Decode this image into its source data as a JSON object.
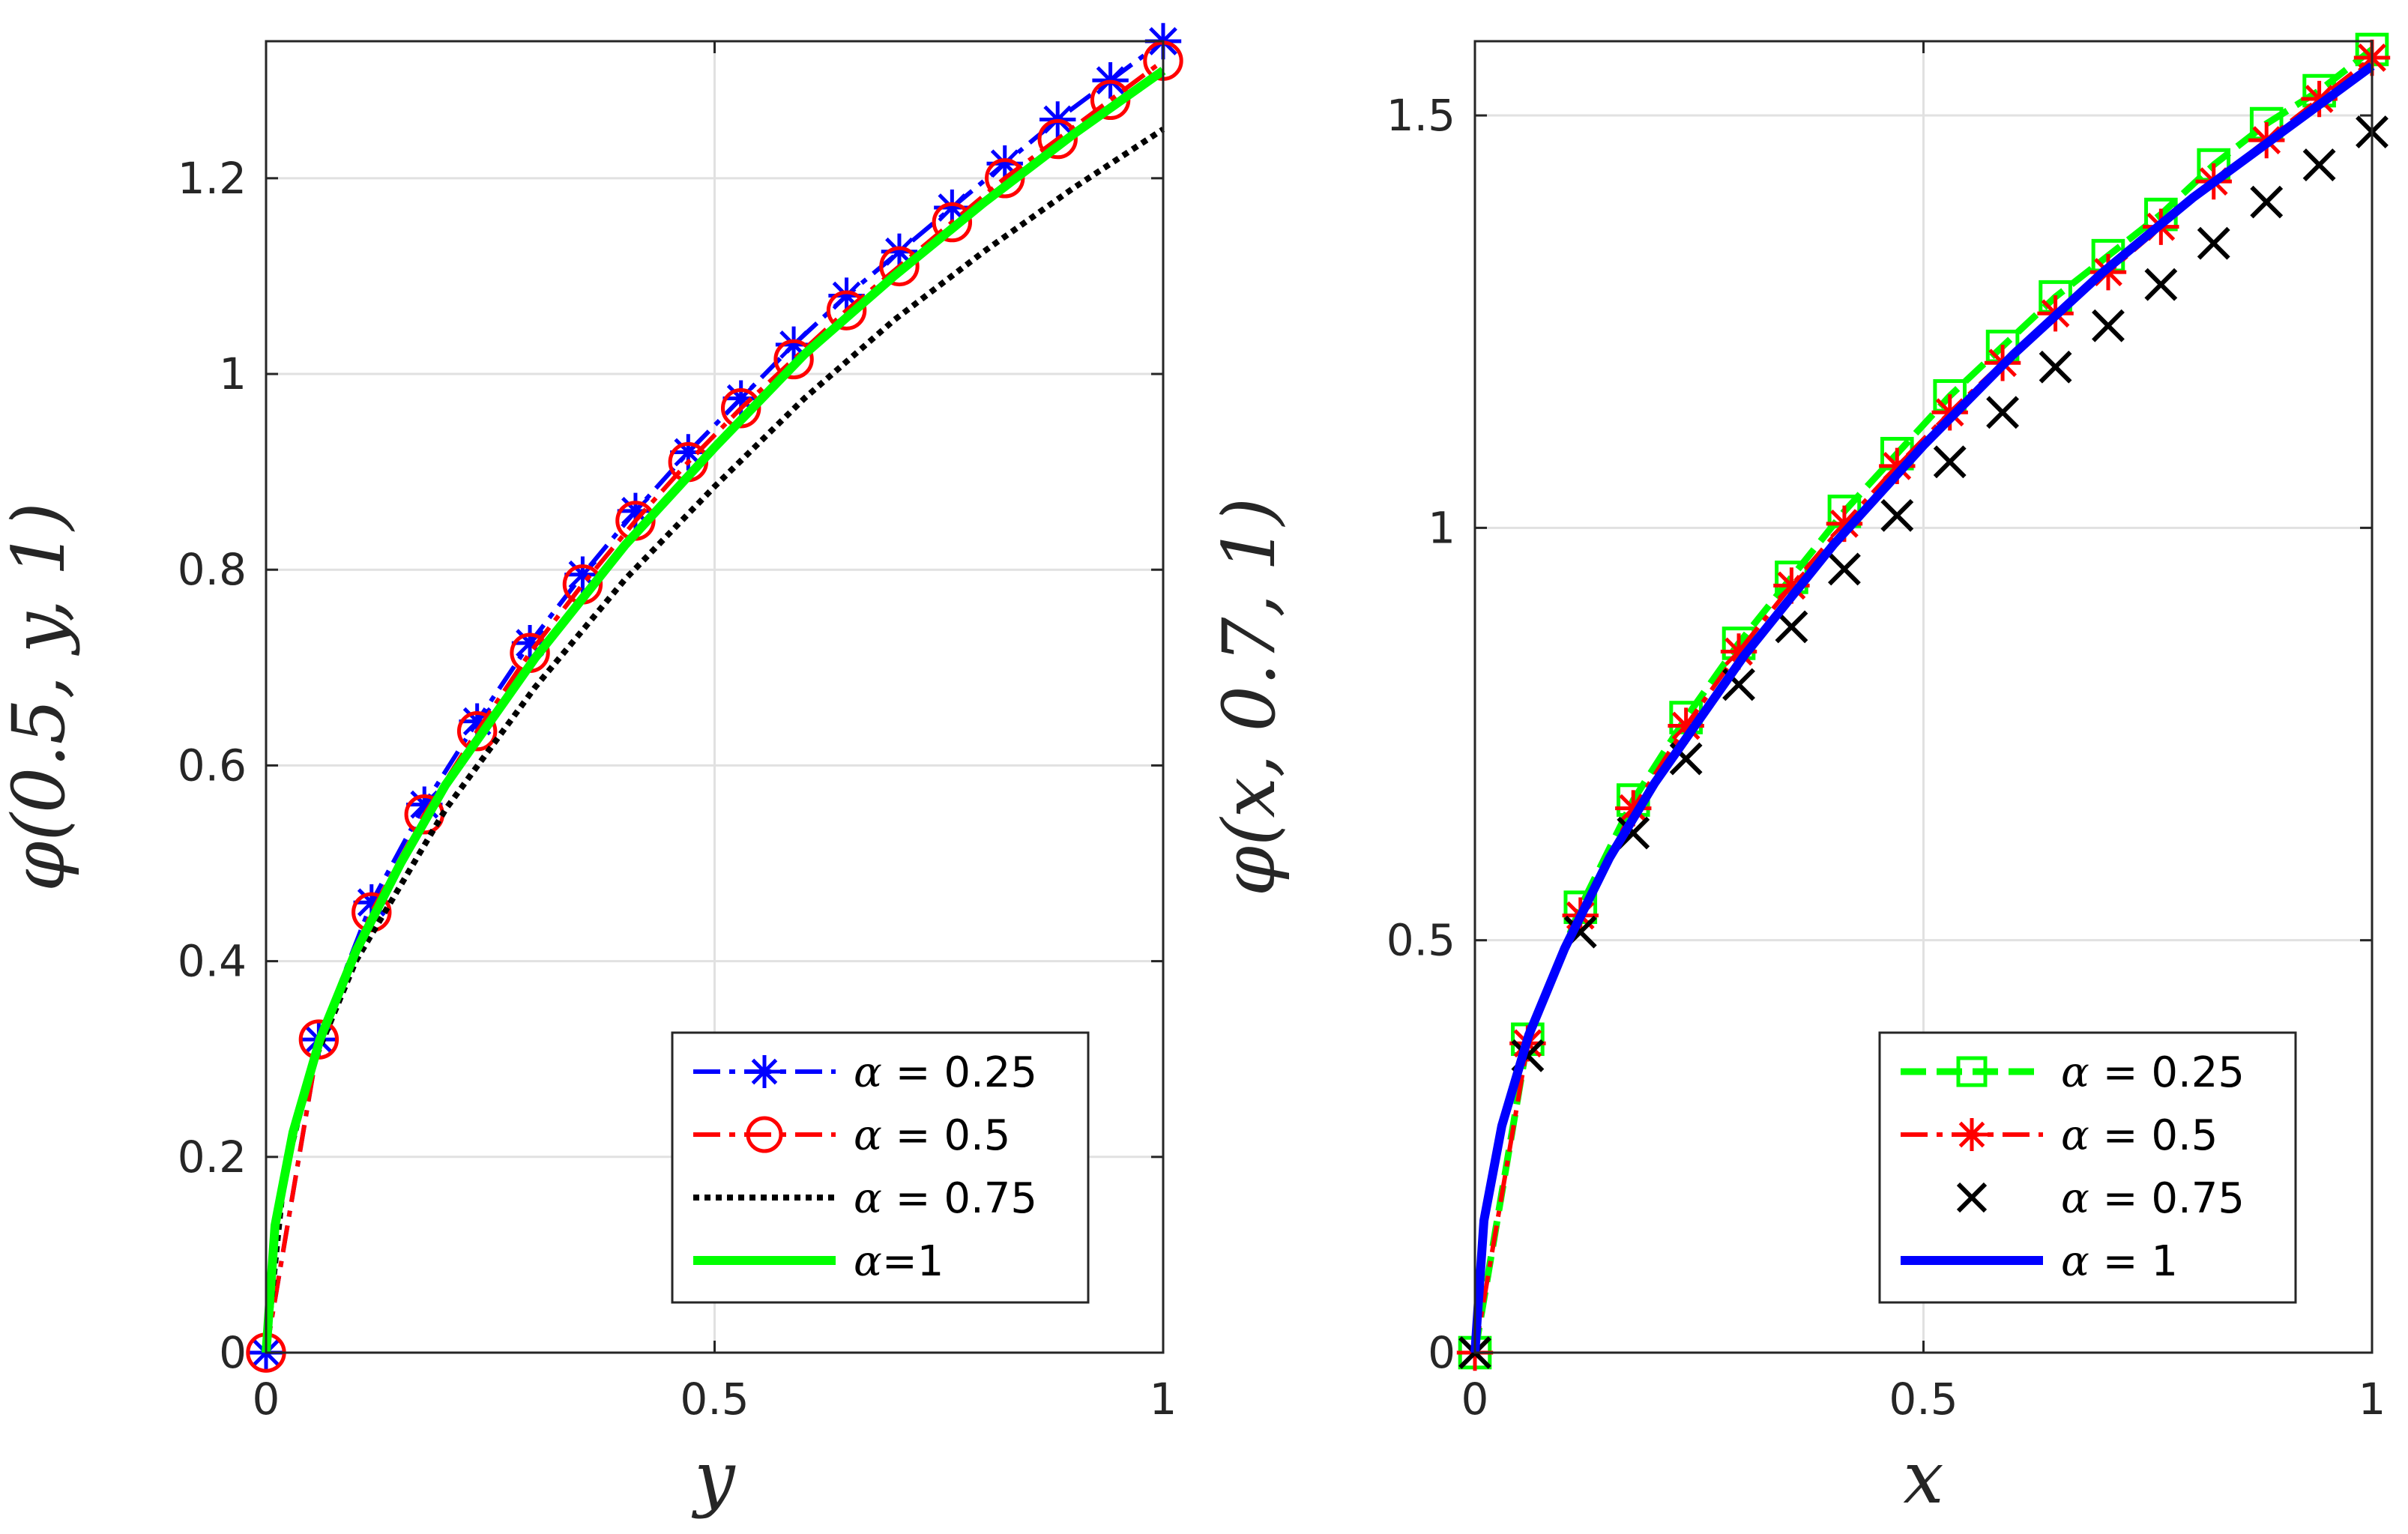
{
  "chart_data": [
    {
      "type": "line",
      "xlabel": "y",
      "ylabel": "φ(0.5, y, 1)",
      "xlim": [
        0,
        1
      ],
      "ylim": [
        0,
        1.34
      ],
      "xticks": [
        0,
        0.5,
        1
      ],
      "xtick_labels": [
        "0",
        "0.5",
        "1"
      ],
      "yticks": [
        0,
        0.2,
        0.4,
        0.6,
        0.8,
        1,
        1.2
      ],
      "ytick_labels": [
        "0",
        "0.2",
        "0.4",
        "0.6",
        "0.8",
        "1",
        "1.2"
      ],
      "grid": true,
      "legend_position": "bottom-right",
      "series": [
        {
          "name": "α = 0.25",
          "legend_symbol": "α",
          "legend_value": " = 0.25",
          "color": "#0000ff",
          "line": "dashdot",
          "marker": "asterisk",
          "x": [
            0,
            0.0588,
            0.1176,
            0.1765,
            0.2353,
            0.2941,
            0.3529,
            0.4118,
            0.4706,
            0.5294,
            0.5882,
            0.6471,
            0.7059,
            0.7647,
            0.8235,
            0.8824,
            0.9412,
            1
          ],
          "y": [
            0,
            0.32,
            0.46,
            0.56,
            0.645,
            0.725,
            0.795,
            0.86,
            0.92,
            0.975,
            1.03,
            1.08,
            1.125,
            1.17,
            1.215,
            1.26,
            1.3,
            1.34
          ]
        },
        {
          "name": "α = 0.5",
          "legend_symbol": "α",
          "legend_value": " = 0.5",
          "color": "#ff0000",
          "line": "dashdot",
          "marker": "circle",
          "x": [
            0,
            0.0588,
            0.1176,
            0.1765,
            0.2353,
            0.2941,
            0.3529,
            0.4118,
            0.4706,
            0.5294,
            0.5882,
            0.6471,
            0.7059,
            0.7647,
            0.8235,
            0.8824,
            0.9412,
            1
          ],
          "y": [
            0,
            0.32,
            0.45,
            0.55,
            0.635,
            0.715,
            0.785,
            0.85,
            0.91,
            0.965,
            1.015,
            1.065,
            1.11,
            1.155,
            1.2,
            1.24,
            1.28,
            1.32
          ]
        },
        {
          "name": "α = 0.75",
          "legend_symbol": "α",
          "legend_value": " = 0.75",
          "color": "#000000",
          "line": "dotted",
          "marker": "none",
          "x": [
            0,
            0.02,
            0.05,
            0.1,
            0.2,
            0.3,
            0.4,
            0.5,
            0.6,
            0.7,
            0.8,
            0.9,
            1
          ],
          "y": [
            0,
            0.18,
            0.29,
            0.4,
            0.555,
            0.68,
            0.79,
            0.885,
            0.975,
            1.055,
            1.125,
            1.19,
            1.25
          ]
        },
        {
          "name": "α=1",
          "legend_symbol": "α",
          "legend_value": "=1",
          "color": "#00ff00",
          "line": "solid",
          "marker": "none",
          "x": [
            0,
            0.01,
            0.03,
            0.06,
            0.1,
            0.15,
            0.2,
            0.3,
            0.4,
            0.5,
            0.6,
            0.7,
            0.8,
            0.9,
            1
          ],
          "y": [
            0,
            0.13,
            0.225,
            0.32,
            0.41,
            0.5,
            0.58,
            0.71,
            0.825,
            0.925,
            1.02,
            1.1,
            1.175,
            1.245,
            1.31
          ]
        }
      ]
    },
    {
      "type": "line",
      "xlabel": "x",
      "ylabel": "φ(x, 0.7, 1)",
      "xlim": [
        0,
        1
      ],
      "ylim": [
        0,
        1.59
      ],
      "xticks": [
        0,
        0.5,
        1
      ],
      "xtick_labels": [
        "0",
        "0.5",
        "1"
      ],
      "yticks": [
        0,
        0.5,
        1,
        1.5
      ],
      "ytick_labels": [
        "0",
        "0.5",
        "1",
        "1.5"
      ],
      "grid": true,
      "legend_position": "bottom-right",
      "series": [
        {
          "name": "α = 0.25",
          "legend_symbol": "α",
          "legend_value": " = 0.25",
          "color": "#00ff00",
          "line": "dashed",
          "marker": "square",
          "x": [
            0,
            0.0588,
            0.1176,
            0.1765,
            0.2353,
            0.2941,
            0.3529,
            0.4118,
            0.4706,
            0.5294,
            0.5882,
            0.6471,
            0.7059,
            0.7647,
            0.8235,
            0.8824,
            0.9412,
            1
          ],
          "y": [
            0,
            0.38,
            0.54,
            0.67,
            0.77,
            0.86,
            0.94,
            1.02,
            1.09,
            1.16,
            1.22,
            1.28,
            1.33,
            1.38,
            1.44,
            1.49,
            1.53,
            1.58
          ]
        },
        {
          "name": "α = 0.5",
          "legend_symbol": "α",
          "legend_value": " = 0.5",
          "color": "#ff0000",
          "line": "dashdot",
          "marker": "asterisk",
          "x": [
            0,
            0.0588,
            0.1176,
            0.1765,
            0.2353,
            0.2941,
            0.3529,
            0.4118,
            0.4706,
            0.5294,
            0.5882,
            0.6471,
            0.7059,
            0.7647,
            0.8235,
            0.8824,
            0.9412,
            1
          ],
          "y": [
            0,
            0.375,
            0.53,
            0.66,
            0.76,
            0.85,
            0.93,
            1.005,
            1.075,
            1.14,
            1.2,
            1.26,
            1.31,
            1.365,
            1.42,
            1.47,
            1.52,
            1.57
          ]
        },
        {
          "name": "α = 0.75",
          "legend_symbol": "α",
          "legend_value": " = 0.75",
          "color": "#000000",
          "line": "none",
          "marker": "cross",
          "x": [
            0,
            0.0588,
            0.1176,
            0.1765,
            0.2353,
            0.2941,
            0.3529,
            0.4118,
            0.4706,
            0.5294,
            0.5882,
            0.6471,
            0.7059,
            0.7647,
            0.8235,
            0.8824,
            0.9412,
            1
          ],
          "y": [
            0,
            0.36,
            0.51,
            0.63,
            0.72,
            0.81,
            0.88,
            0.95,
            1.015,
            1.08,
            1.14,
            1.195,
            1.245,
            1.295,
            1.345,
            1.395,
            1.44,
            1.48
          ]
        },
        {
          "name": "α = 1",
          "legend_symbol": "α",
          "legend_value": " = 1",
          "color": "#0000ff",
          "line": "solid",
          "marker": "none",
          "x": [
            0,
            0.01,
            0.03,
            0.06,
            0.1,
            0.15,
            0.2,
            0.3,
            0.4,
            0.5,
            0.6,
            0.7,
            0.8,
            0.9,
            1
          ],
          "y": [
            0,
            0.16,
            0.275,
            0.385,
            0.49,
            0.6,
            0.69,
            0.845,
            0.98,
            1.1,
            1.21,
            1.31,
            1.4,
            1.48,
            1.56
          ]
        }
      ]
    }
  ]
}
